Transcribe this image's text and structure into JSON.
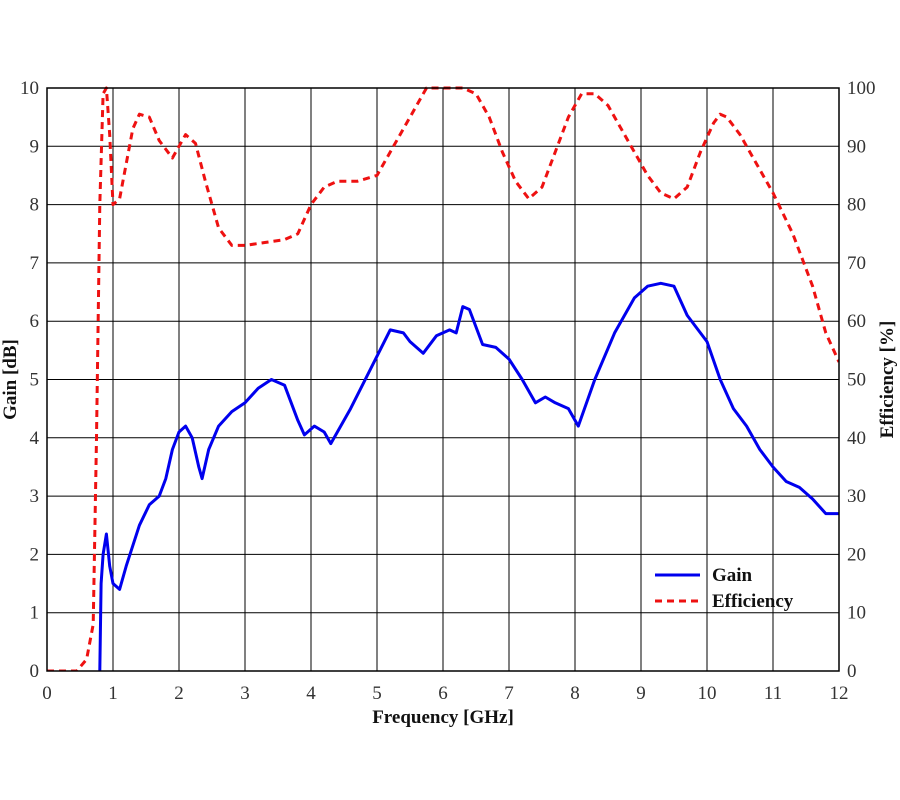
{
  "chart_data": {
    "type": "line",
    "title": "",
    "xlabel": "Frequency [GHz]",
    "ylabel": "Gain [dB]",
    "y2label": "Efficiency [%]",
    "xlim": [
      0,
      12
    ],
    "ylim": [
      0,
      10
    ],
    "y2lim": [
      0,
      100
    ],
    "grid": true,
    "legend_position": "bottom-right",
    "x_ticks": [
      "0",
      "1",
      "2",
      "3",
      "4",
      "5",
      "6",
      "7",
      "8",
      "9",
      "10",
      "11",
      "12"
    ],
    "y_ticks": [
      "0",
      "1",
      "2",
      "3",
      "4",
      "5",
      "6",
      "7",
      "8",
      "9",
      "10"
    ],
    "y2_ticks": [
      "0",
      "10",
      "20",
      "30",
      "40",
      "50",
      "60",
      "70",
      "80",
      "90",
      "100"
    ],
    "series": [
      {
        "name": "Gain",
        "axis": "left",
        "color": "#0000ee",
        "style": "solid",
        "x": [
          0.8,
          0.82,
          0.85,
          0.9,
          0.95,
          1.0,
          1.1,
          1.2,
          1.4,
          1.55,
          1.7,
          1.8,
          1.9,
          2.0,
          2.1,
          2.2,
          2.3,
          2.35,
          2.45,
          2.6,
          2.8,
          3.0,
          3.2,
          3.4,
          3.6,
          3.8,
          3.9,
          4.05,
          4.2,
          4.3,
          4.6,
          5.0,
          5.2,
          5.4,
          5.5,
          5.7,
          5.9,
          6.1,
          6.2,
          6.3,
          6.4,
          6.6,
          6.8,
          7.0,
          7.2,
          7.4,
          7.55,
          7.7,
          7.9,
          8.05,
          8.3,
          8.6,
          8.9,
          9.1,
          9.3,
          9.5,
          9.7,
          10.0,
          10.2,
          10.4,
          10.6,
          10.8,
          11.0,
          11.2,
          11.4,
          11.6,
          11.8,
          12.0
        ],
        "values": [
          0,
          1.5,
          2.0,
          2.35,
          1.8,
          1.5,
          1.4,
          1.8,
          2.5,
          2.85,
          3.0,
          3.3,
          3.8,
          4.1,
          4.2,
          4.0,
          3.5,
          3.3,
          3.8,
          4.2,
          4.45,
          4.6,
          4.85,
          5.0,
          4.9,
          4.3,
          4.05,
          4.2,
          4.1,
          3.9,
          4.5,
          5.4,
          5.85,
          5.8,
          5.65,
          5.45,
          5.75,
          5.85,
          5.8,
          6.25,
          6.2,
          5.6,
          5.55,
          5.35,
          5.0,
          4.6,
          4.7,
          4.6,
          4.5,
          4.2,
          5.0,
          5.8,
          6.4,
          6.6,
          6.65,
          6.6,
          6.1,
          5.65,
          5.0,
          4.5,
          4.2,
          3.8,
          3.5,
          3.25,
          3.15,
          2.95,
          2.7,
          2.7
        ]
      },
      {
        "name": "Efficiency",
        "axis": "right",
        "color": "#ee1111",
        "style": "dashed",
        "x": [
          0.0,
          0.45,
          0.6,
          0.7,
          0.75,
          0.8,
          0.85,
          0.9,
          0.95,
          1.0,
          1.1,
          1.2,
          1.3,
          1.4,
          1.55,
          1.7,
          1.9,
          2.0,
          2.1,
          2.25,
          2.4,
          2.6,
          2.8,
          3.0,
          3.3,
          3.6,
          3.8,
          4.0,
          4.2,
          4.4,
          4.7,
          5.0,
          5.2,
          5.4,
          5.6,
          5.75,
          6.0,
          6.3,
          6.5,
          6.7,
          6.9,
          7.1,
          7.3,
          7.5,
          7.7,
          7.9,
          8.1,
          8.3,
          8.5,
          8.7,
          8.9,
          9.1,
          9.3,
          9.5,
          9.7,
          9.9,
          10.1,
          10.2,
          10.3,
          10.5,
          10.8,
          11.0,
          11.3,
          11.6,
          11.8,
          12.0
        ],
        "values": [
          0,
          0,
          2,
          8,
          40,
          80,
          99,
          100,
          92,
          80,
          81,
          87,
          93,
          95.5,
          95,
          91,
          88,
          90,
          92,
          90.5,
          84,
          76,
          73,
          73,
          73.5,
          74,
          75,
          80,
          83,
          84,
          84,
          85,
          89,
          93,
          97,
          100,
          100,
          100,
          99,
          95,
          89,
          84,
          81,
          83,
          89,
          95,
          99,
          99,
          97,
          93,
          89,
          85,
          82,
          81,
          83,
          89,
          94,
          95.5,
          95,
          92,
          86,
          82,
          75,
          66,
          58,
          53
        ]
      }
    ]
  }
}
